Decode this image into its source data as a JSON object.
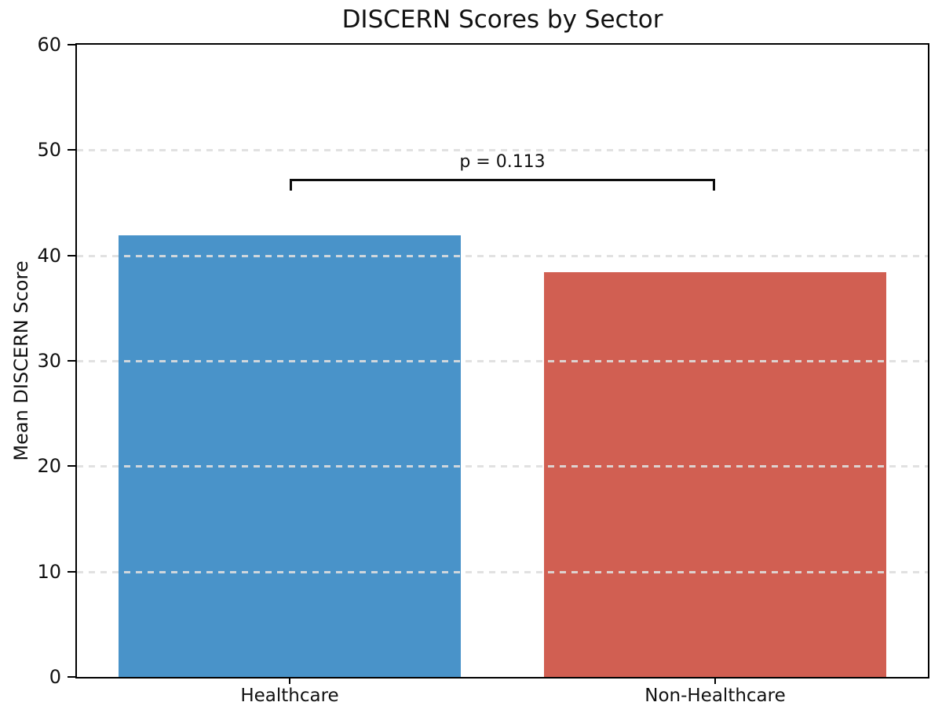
{
  "chart_data": {
    "type": "bar",
    "title": "DISCERN Scores by Sector",
    "xlabel": "",
    "ylabel": "Mean DISCERN Score",
    "categories": [
      "Healthcare",
      "Non-Healthcare"
    ],
    "values": [
      41.9,
      38.4
    ],
    "bar_colors": [
      "#4993c9",
      "#d15f52"
    ],
    "ylim": [
      0,
      60
    ],
    "yticks": [
      0,
      10,
      20,
      30,
      40,
      50,
      60
    ],
    "grid": {
      "show": true,
      "style": "dashed",
      "axis": "y",
      "color": "#dedede"
    },
    "legend": null,
    "annotation": {
      "text": "p = 0.113",
      "y": 47.3,
      "from_category": "Healthcare",
      "to_category": "Non-Healthcare"
    },
    "spine_color": "#000000",
    "background": "#ffffff"
  }
}
